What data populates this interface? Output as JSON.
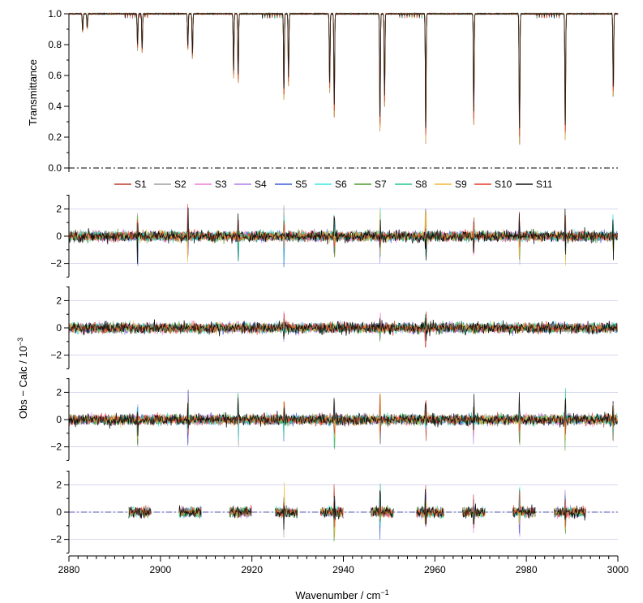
{
  "chart_data": {
    "type": "line",
    "xlabel": "Wavenumber / cm",
    "xlabel_superscript": "−1",
    "xlim": [
      2880,
      3000
    ],
    "x_ticks": [
      2880,
      2900,
      2920,
      2940,
      2960,
      2980,
      3000
    ],
    "series_names": [
      "S1",
      "S2",
      "S3",
      "S4",
      "S5",
      "S6",
      "S7",
      "S8",
      "S9",
      "S10",
      "S11"
    ],
    "series_colors": [
      "#c0392b",
      "#9e9e9e",
      "#ef7bd8",
      "#b07fe8",
      "#3a5fd6",
      "#3fe6e6",
      "#4f9a2a",
      "#22c98c",
      "#f2b633",
      "#e8382a",
      "#111111"
    ],
    "legend_placement": "between-panels",
    "spectrum": {
      "ylabel": "Transmittance",
      "ylim": [
        0,
        1
      ],
      "y_ticks": [
        "0.0",
        "0.2",
        "0.4",
        "0.6",
        "0.8",
        "1.0"
      ],
      "baseline": 0.0,
      "lines": [
        {
          "x": 2883,
          "min_transmittance": 0.88
        },
        {
          "x": 2884,
          "min_transmittance": 0.9
        },
        {
          "x": 2895,
          "min_transmittance": 0.78
        },
        {
          "x": 2896,
          "min_transmittance": 0.74
        },
        {
          "x": 2906,
          "min_transmittance": 0.76
        },
        {
          "x": 2907,
          "min_transmittance": 0.71
        },
        {
          "x": 2916,
          "min_transmittance": 0.58
        },
        {
          "x": 2917,
          "min_transmittance": 0.54
        },
        {
          "x": 2927,
          "min_transmittance": 0.43
        },
        {
          "x": 2928,
          "min_transmittance": 0.53
        },
        {
          "x": 2937,
          "min_transmittance": 0.49
        },
        {
          "x": 2938,
          "min_transmittance": 0.31
        },
        {
          "x": 2948,
          "min_transmittance": 0.22
        },
        {
          "x": 2949,
          "min_transmittance": 0.4
        },
        {
          "x": 2958,
          "min_transmittance": 0.16
        },
        {
          "x": 2968.5,
          "min_transmittance": 0.28
        },
        {
          "x": 2978.5,
          "min_transmittance": 0.13
        },
        {
          "x": 2988.5,
          "min_transmittance": 0.16
        },
        {
          "x": 2999,
          "min_transmittance": 0.45
        }
      ]
    },
    "residuals": {
      "ylabel": "Obs − Calc / 10",
      "ylabel_superscript": "−3",
      "ylim": [
        -3,
        3
      ],
      "y_ticks": [
        "2",
        "0",
        "−2"
      ],
      "noise_amplitude": 0.6,
      "panels": [
        {
          "coverage": "full",
          "spike_lines": [
            2895,
            2906,
            2917,
            2927,
            2938,
            2948,
            2958,
            2968.5,
            2978.5,
            2988.5,
            2999
          ],
          "spike_max": 2.5
        },
        {
          "coverage": "full",
          "spike_lines": [
            2927,
            2948,
            2958
          ],
          "spike_max": 1.6
        },
        {
          "coverage": "full",
          "spike_lines": [
            2895,
            2906,
            2917,
            2927,
            2938,
            2948,
            2958,
            2968.5,
            2978.5,
            2988.5,
            2999
          ],
          "spike_max": 2.5
        },
        {
          "coverage": "windows",
          "windows": [
            [
              2893,
              2898
            ],
            [
              2904,
              2909
            ],
            [
              2915,
              2920
            ],
            [
              2925,
              2930
            ],
            [
              2935,
              2940
            ],
            [
              2946,
              2951
            ],
            [
              2956,
              2962
            ],
            [
              2966,
              2971
            ],
            [
              2977,
              2982
            ],
            [
              2986,
              2993
            ]
          ],
          "spike_lines": [
            2927,
            2938,
            2948,
            2958,
            2968.5,
            2978.5,
            2988.5
          ],
          "spike_max": 2.3
        }
      ]
    }
  }
}
